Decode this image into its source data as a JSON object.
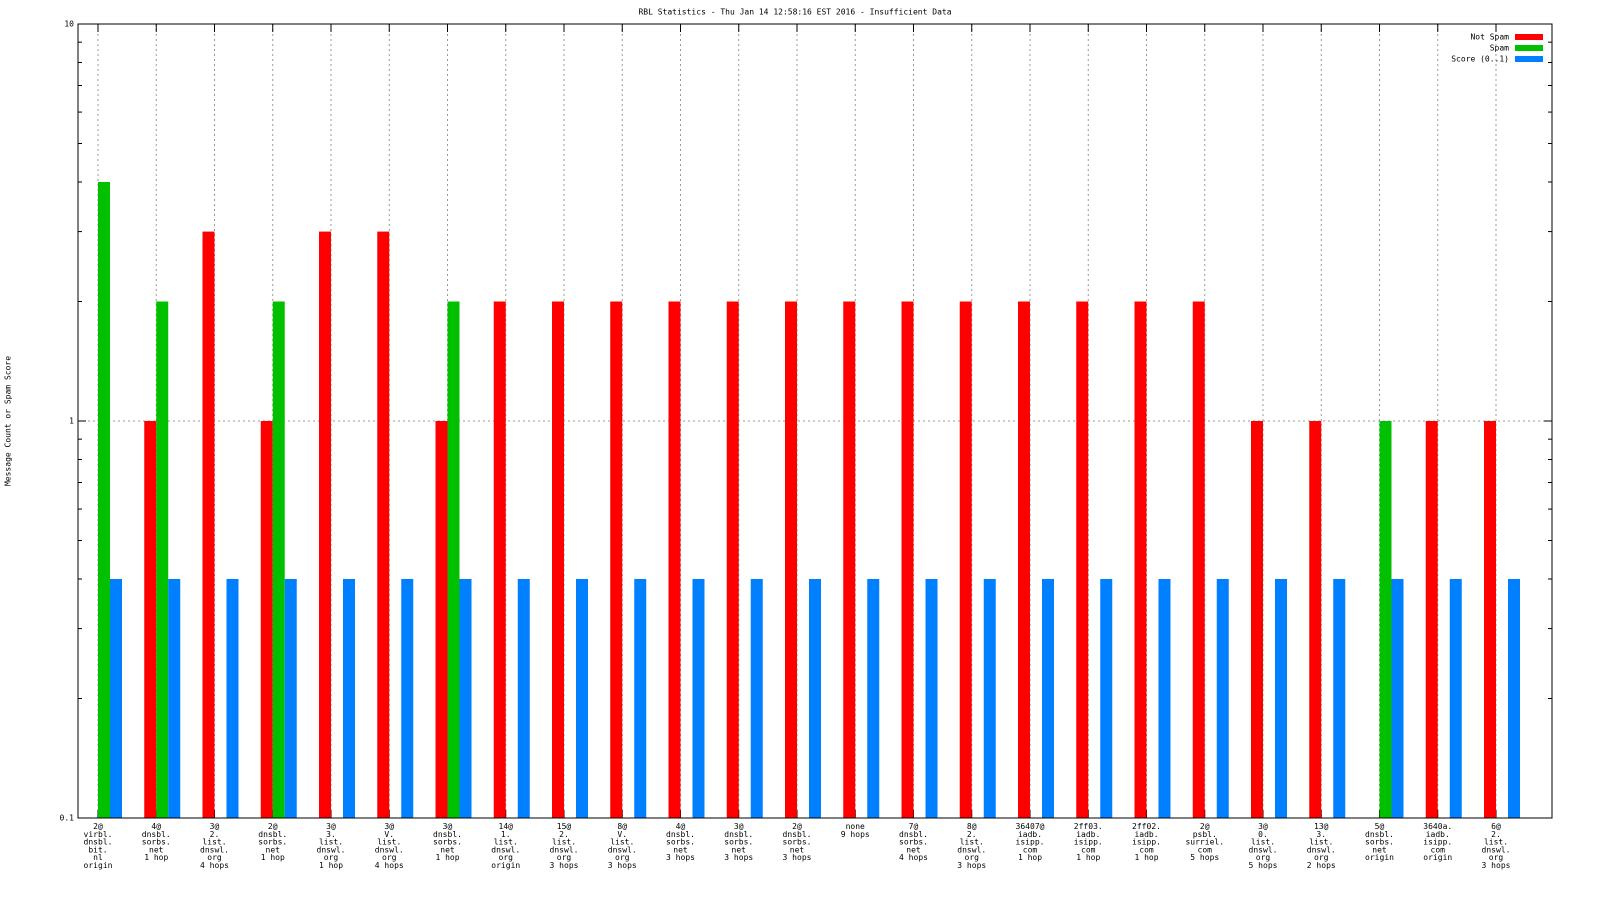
{
  "chart_data": {
    "type": "bar",
    "title": "RBL Statistics - Thu Jan 14 12:58:16 EST 2016 - Insufficient Data",
    "y_label": "Message Count or Spam Score",
    "log_scale": true,
    "grid": true,
    "legend": "top-right",
    "ylim": [
      0.1,
      10
    ],
    "yticks": [
      0.1,
      1,
      10
    ],
    "categories": [
      "2@\nvirbl.\ndnsbl.\nbit.\nnl\norigin",
      "4@\ndnsbl.\nsorbs.\nnet\n1 hop",
      "3@\n2.\nlist.\ndnswl.\norg\n4 hops",
      "2@\ndnsbl.\nsorbs.\nnet\n1 hop",
      "3@\n3.\nlist.\ndnswl.\norg\n1 hop",
      "3@\nV.\nlist.\ndnswl.\norg\n4 hops",
      "3@\ndnsbl.\nsorbs.\nnet\n1 hop",
      "14@\n1.\nlist.\ndnswl.\norg\norigin",
      "15@\n2.\nlist.\ndnswl.\norg\n3 hops",
      "8@\nV.\nlist.\ndnswl.\norg\n3 hops",
      "4@\ndnsbl.\nsorbs.\nnet\n3 hops",
      "3@\ndnsbl.\nsorbs.\nnet\n3 hops",
      "2@\ndnsbl.\nsorbs.\nnet\n3 hops",
      "none\n9 hops",
      "7@\ndnsbl.\nsorbs.\nnet\n4 hops",
      "8@\n2.\nlist.\ndnswl.\norg\n3 hops",
      "36407@\niadb.\nisipp.\ncom\n1 hop",
      "2ff03.\niadb.\nisipp.\ncom\n1 hop",
      "2ff02.\niadb.\nisipp.\ncom\n1 hop",
      "2@\npsbl.\nsurriel.\ncom\n5 hops",
      "3@\n0.\nlist.\ndnswl.\norg\n5 hops",
      "13@\n3.\nlist.\ndnswl.\norg\n2 hops",
      "5@\ndnsbl.\nsorbs.\nnet\norigin",
      "3640a.\niadb.\nisipp.\ncom\norigin",
      "6@\n2.\nlist.\ndnswl.\norg\n3 hops"
    ],
    "series": [
      {
        "name": "Not Spam",
        "color": "#ff0000",
        "values": [
          null,
          1,
          3,
          1,
          3,
          3,
          1,
          2,
          2,
          2,
          2,
          2,
          2,
          2,
          2,
          2,
          2,
          2,
          2,
          2,
          1,
          1,
          null,
          1,
          1
        ]
      },
      {
        "name": "Spam",
        "color": "#00c000",
        "values": [
          4,
          2,
          null,
          2,
          null,
          null,
          2,
          null,
          null,
          null,
          null,
          null,
          null,
          null,
          null,
          null,
          null,
          null,
          null,
          null,
          null,
          null,
          1,
          null,
          null
        ]
      },
      {
        "name": "Score (0..1)",
        "color": "#0080ff",
        "values": [
          0.4,
          0.4,
          0.4,
          0.4,
          0.4,
          0.4,
          0.4,
          0.4,
          0.4,
          0.4,
          0.4,
          0.4,
          0.4,
          0.4,
          0.4,
          0.4,
          0.4,
          0.4,
          0.4,
          0.4,
          0.4,
          0.4,
          0.4,
          0.4,
          0.4
        ]
      }
    ]
  }
}
